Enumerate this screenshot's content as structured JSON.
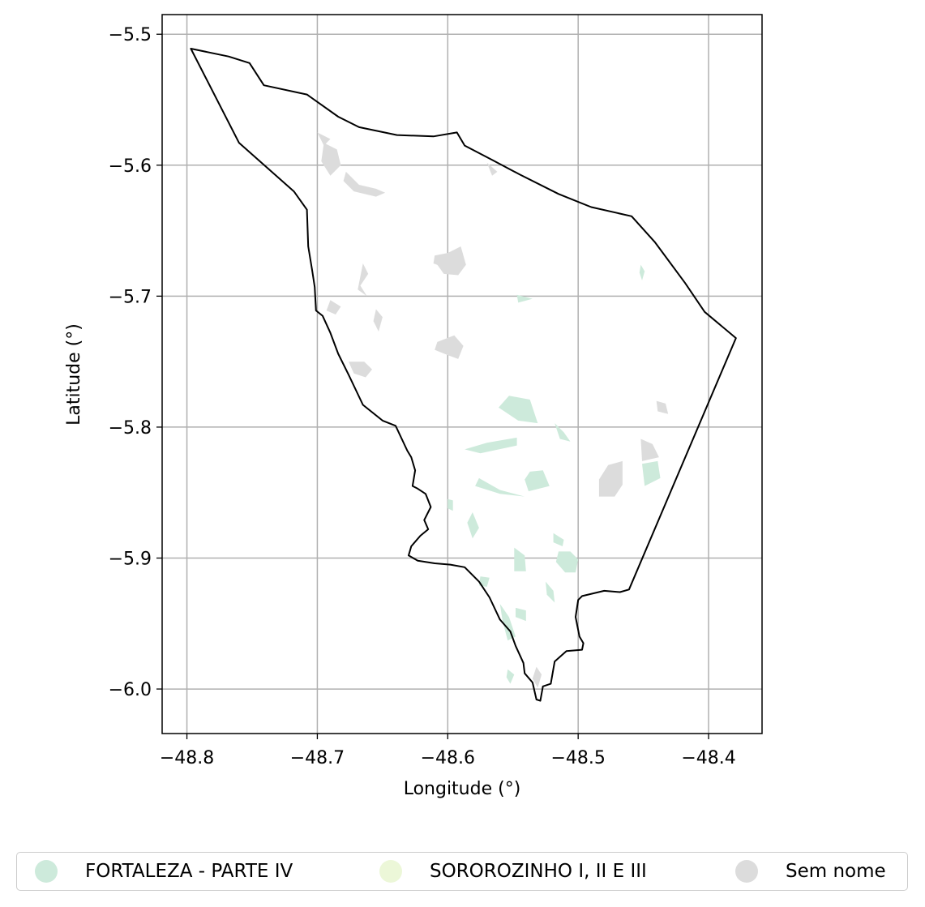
{
  "chart_data": {
    "type": "map",
    "xlabel": "Longitude (°)",
    "ylabel": "Latitude (°)",
    "xlim": [
      -48.819,
      -48.359
    ],
    "ylim": [
      -6.034,
      -5.485
    ],
    "xticks": [
      -48.8,
      -48.7,
      -48.6,
      -48.5,
      -48.4
    ],
    "xtick_labels": [
      "−48.8",
      "−48.7",
      "−48.6",
      "−48.5",
      "−48.4"
    ],
    "yticks": [
      -5.5,
      -5.6,
      -5.7,
      -5.8,
      -5.9,
      -6.0
    ],
    "ytick_labels": [
      "−5.5",
      "−5.6",
      "−5.7",
      "−5.8",
      "−5.9",
      "−6.0"
    ],
    "grid": true,
    "legend_placement": "bottom",
    "colors": {
      "boundary": "#000000",
      "grid": "#b0b0b0",
      "fortaleza": "#cdeadb",
      "sororozinho": "#ecf7d8",
      "sem_nome": "#dcdcdc"
    },
    "legend": [
      {
        "label": "FORTALEZA - PARTE IV",
        "color": "#cdeadb"
      },
      {
        "label": "SOROROZINHO I, II E III",
        "color": "#ecf7d8"
      },
      {
        "label": "Sem nome",
        "color": "#dcdcdc"
      }
    ],
    "boundary": [
      [
        -48.797,
        -5.511
      ],
      [
        -48.768,
        -5.517
      ],
      [
        -48.752,
        -5.522
      ],
      [
        -48.741,
        -5.539
      ],
      [
        -48.708,
        -5.546
      ],
      [
        -48.684,
        -5.563
      ],
      [
        -48.668,
        -5.571
      ],
      [
        -48.639,
        -5.577
      ],
      [
        -48.611,
        -5.578
      ],
      [
        -48.593,
        -5.575
      ],
      [
        -48.587,
        -5.585
      ],
      [
        -48.566,
        -5.596
      ],
      [
        -48.545,
        -5.607
      ],
      [
        -48.515,
        -5.622
      ],
      [
        -48.49,
        -5.632
      ],
      [
        -48.459,
        -5.639
      ],
      [
        -48.441,
        -5.659
      ],
      [
        -48.418,
        -5.69
      ],
      [
        -48.403,
        -5.712
      ],
      [
        -48.379,
        -5.732
      ],
      [
        -48.461,
        -5.924
      ],
      [
        -48.468,
        -5.926
      ],
      [
        -48.48,
        -5.925
      ],
      [
        -48.497,
        -5.929
      ],
      [
        -48.5,
        -5.932
      ],
      [
        -48.502,
        -5.945
      ],
      [
        -48.499,
        -5.96
      ],
      [
        -48.496,
        -5.965
      ],
      [
        -48.497,
        -5.97
      ],
      [
        -48.509,
        -5.971
      ],
      [
        -48.518,
        -5.979
      ],
      [
        -48.521,
        -5.996
      ],
      [
        -48.527,
        -5.998
      ],
      [
        -48.529,
        -6.009
      ],
      [
        -48.532,
        -6.008
      ],
      [
        -48.535,
        -5.995
      ],
      [
        -48.541,
        -5.988
      ],
      [
        -48.542,
        -5.98
      ],
      [
        -48.548,
        -5.967
      ],
      [
        -48.552,
        -5.956
      ],
      [
        -48.56,
        -5.947
      ],
      [
        -48.568,
        -5.93
      ],
      [
        -48.576,
        -5.918
      ],
      [
        -48.587,
        -5.907
      ],
      [
        -48.598,
        -5.905
      ],
      [
        -48.61,
        -5.904
      ],
      [
        -48.623,
        -5.902
      ],
      [
        -48.63,
        -5.898
      ],
      [
        -48.628,
        -5.891
      ],
      [
        -48.621,
        -5.883
      ],
      [
        -48.615,
        -5.878
      ],
      [
        -48.618,
        -5.871
      ],
      [
        -48.613,
        -5.861
      ],
      [
        -48.617,
        -5.851
      ],
      [
        -48.623,
        -5.847
      ],
      [
        -48.627,
        -5.845
      ],
      [
        -48.625,
        -5.833
      ],
      [
        -48.628,
        -5.823
      ],
      [
        -48.631,
        -5.818
      ],
      [
        -48.64,
        -5.799
      ],
      [
        -48.65,
        -5.795
      ],
      [
        -48.665,
        -5.783
      ],
      [
        -48.676,
        -5.76
      ],
      [
        -48.684,
        -5.744
      ],
      [
        -48.69,
        -5.728
      ],
      [
        -48.696,
        -5.715
      ],
      [
        -48.701,
        -5.711
      ],
      [
        -48.702,
        -5.693
      ],
      [
        -48.704,
        -5.68
      ],
      [
        -48.707,
        -5.662
      ],
      [
        -48.708,
        -5.634
      ],
      [
        -48.718,
        -5.62
      ],
      [
        -48.76,
        -5.583
      ],
      [
        -48.797,
        -5.511
      ]
    ],
    "features": [
      {
        "cls": "sem_nome",
        "pts": [
          [
            -48.695,
            -5.583
          ],
          [
            -48.685,
            -5.588
          ],
          [
            -48.682,
            -5.6
          ],
          [
            -48.69,
            -5.608
          ],
          [
            -48.697,
            -5.597
          ]
        ]
      },
      {
        "cls": "sem_nome",
        "pts": [
          [
            -48.7,
            -5.575
          ],
          [
            -48.69,
            -5.58
          ],
          [
            -48.695,
            -5.585
          ]
        ]
      },
      {
        "cls": "sem_nome",
        "pts": [
          [
            -48.678,
            -5.605
          ],
          [
            -48.668,
            -5.615
          ],
          [
            -48.655,
            -5.618
          ],
          [
            -48.648,
            -5.621
          ],
          [
            -48.655,
            -5.624
          ],
          [
            -48.672,
            -5.62
          ],
          [
            -48.68,
            -5.612
          ]
        ]
      },
      {
        "cls": "sem_nome",
        "pts": [
          [
            -48.59,
            -5.662
          ],
          [
            -48.602,
            -5.668
          ],
          [
            -48.608,
            -5.676
          ],
          [
            -48.603,
            -5.683
          ],
          [
            -48.592,
            -5.684
          ],
          [
            -48.586,
            -5.676
          ]
        ]
      },
      {
        "cls": "sem_nome",
        "pts": [
          [
            -48.61,
            -5.669
          ],
          [
            -48.6,
            -5.667
          ],
          [
            -48.597,
            -5.68
          ],
          [
            -48.611,
            -5.675
          ]
        ]
      },
      {
        "cls": "sem_nome",
        "pts": [
          [
            -48.665,
            -5.675
          ],
          [
            -48.661,
            -5.683
          ],
          [
            -48.667,
            -5.692
          ],
          [
            -48.662,
            -5.7
          ],
          [
            -48.669,
            -5.695
          ]
        ]
      },
      {
        "cls": "sem_nome",
        "pts": [
          [
            -48.69,
            -5.703
          ],
          [
            -48.682,
            -5.708
          ],
          [
            -48.686,
            -5.714
          ],
          [
            -48.693,
            -5.711
          ]
        ]
      },
      {
        "cls": "sem_nome",
        "pts": [
          [
            -48.655,
            -5.71
          ],
          [
            -48.65,
            -5.716
          ],
          [
            -48.653,
            -5.727
          ],
          [
            -48.657,
            -5.719
          ]
        ]
      },
      {
        "cls": "sem_nome",
        "pts": [
          [
            -48.676,
            -5.75
          ],
          [
            -48.664,
            -5.75
          ],
          [
            -48.658,
            -5.756
          ],
          [
            -48.663,
            -5.762
          ],
          [
            -48.672,
            -5.759
          ]
        ]
      },
      {
        "cls": "sem_nome",
        "pts": [
          [
            -48.608,
            -5.735
          ],
          [
            -48.595,
            -5.73
          ],
          [
            -48.588,
            -5.738
          ],
          [
            -48.592,
            -5.748
          ],
          [
            -48.6,
            -5.745
          ],
          [
            -48.61,
            -5.741
          ]
        ]
      },
      {
        "cls": "sem_nome",
        "pts": [
          [
            -48.57,
            -5.598
          ],
          [
            -48.562,
            -5.605
          ],
          [
            -48.566,
            -5.608
          ]
        ]
      },
      {
        "cls": "sem_nome",
        "pts": [
          [
            -48.44,
            -5.78
          ],
          [
            -48.433,
            -5.782
          ],
          [
            -48.431,
            -5.79
          ],
          [
            -48.439,
            -5.788
          ]
        ]
      },
      {
        "cls": "sem_nome",
        "pts": [
          [
            -48.477,
            -5.829
          ],
          [
            -48.466,
            -5.826
          ],
          [
            -48.466,
            -5.844
          ],
          [
            -48.472,
            -5.853
          ],
          [
            -48.484,
            -5.853
          ],
          [
            -48.484,
            -5.84
          ]
        ]
      },
      {
        "cls": "sem_nome",
        "pts": [
          [
            -48.452,
            -5.809
          ],
          [
            -48.443,
            -5.813
          ],
          [
            -48.438,
            -5.823
          ],
          [
            -48.451,
            -5.826
          ]
        ]
      },
      {
        "cls": "sem_nome",
        "pts": [
          [
            -48.532,
            -5.983
          ],
          [
            -48.528,
            -5.989
          ],
          [
            -48.531,
            -5.999
          ],
          [
            -48.535,
            -5.992
          ]
        ]
      },
      {
        "cls": "fortaleza",
        "pts": [
          [
            -48.553,
            -5.776
          ],
          [
            -48.537,
            -5.779
          ],
          [
            -48.531,
            -5.797
          ],
          [
            -48.546,
            -5.795
          ],
          [
            -48.561,
            -5.785
          ]
        ]
      },
      {
        "cls": "fortaleza",
        "pts": [
          [
            -48.587,
            -5.817
          ],
          [
            -48.57,
            -5.812
          ],
          [
            -48.547,
            -5.808
          ],
          [
            -48.547,
            -5.814
          ],
          [
            -48.575,
            -5.82
          ]
        ]
      },
      {
        "cls": "fortaleza",
        "pts": [
          [
            -48.518,
            -5.797
          ],
          [
            -48.511,
            -5.804
          ],
          [
            -48.506,
            -5.811
          ],
          [
            -48.514,
            -5.809
          ]
        ]
      },
      {
        "cls": "fortaleza",
        "pts": [
          [
            -48.537,
            -5.834
          ],
          [
            -48.527,
            -5.833
          ],
          [
            -48.522,
            -5.845
          ],
          [
            -48.538,
            -5.849
          ],
          [
            -48.541,
            -5.84
          ]
        ]
      },
      {
        "cls": "fortaleza",
        "pts": [
          [
            -48.451,
            -5.828
          ],
          [
            -48.439,
            -5.826
          ],
          [
            -48.437,
            -5.839
          ],
          [
            -48.449,
            -5.845
          ]
        ]
      },
      {
        "cls": "fortaleza",
        "pts": [
          [
            -48.576,
            -5.839
          ],
          [
            -48.56,
            -5.848
          ],
          [
            -48.541,
            -5.853
          ],
          [
            -48.56,
            -5.851
          ],
          [
            -48.579,
            -5.845
          ]
        ]
      },
      {
        "cls": "fortaleza",
        "pts": [
          [
            -48.6,
            -5.855
          ],
          [
            -48.596,
            -5.856
          ],
          [
            -48.596,
            -5.864
          ],
          [
            -48.6,
            -5.862
          ]
        ]
      },
      {
        "cls": "fortaleza",
        "pts": [
          [
            -48.581,
            -5.865
          ],
          [
            -48.576,
            -5.877
          ],
          [
            -48.581,
            -5.885
          ],
          [
            -48.585,
            -5.873
          ]
        ]
      },
      {
        "cls": "fortaleza",
        "pts": [
          [
            -48.549,
            -5.892
          ],
          [
            -48.541,
            -5.898
          ],
          [
            -48.54,
            -5.91
          ],
          [
            -48.549,
            -5.91
          ]
        ]
      },
      {
        "cls": "fortaleza",
        "pts": [
          [
            -48.515,
            -5.895
          ],
          [
            -48.506,
            -5.895
          ],
          [
            -48.5,
            -5.901
          ],
          [
            -48.502,
            -5.911
          ],
          [
            -48.51,
            -5.911
          ],
          [
            -48.517,
            -5.903
          ]
        ]
      },
      {
        "cls": "fortaleza",
        "pts": [
          [
            -48.519,
            -5.881
          ],
          [
            -48.511,
            -5.886
          ],
          [
            -48.512,
            -5.891
          ],
          [
            -48.519,
            -5.888
          ]
        ]
      },
      {
        "cls": "fortaleza",
        "pts": [
          [
            -48.525,
            -5.918
          ],
          [
            -48.519,
            -5.925
          ],
          [
            -48.518,
            -5.934
          ],
          [
            -48.524,
            -5.928
          ]
        ]
      },
      {
        "cls": "fortaleza",
        "pts": [
          [
            -48.56,
            -5.935
          ],
          [
            -48.553,
            -5.945
          ],
          [
            -48.548,
            -5.96
          ],
          [
            -48.554,
            -5.963
          ],
          [
            -48.558,
            -5.948
          ]
        ]
      },
      {
        "cls": "fortaleza",
        "pts": [
          [
            -48.548,
            -5.938
          ],
          [
            -48.54,
            -5.94
          ],
          [
            -48.54,
            -5.948
          ],
          [
            -48.548,
            -5.945
          ]
        ]
      },
      {
        "cls": "fortaleza",
        "pts": [
          [
            -48.575,
            -5.914
          ],
          [
            -48.568,
            -5.915
          ],
          [
            -48.57,
            -5.922
          ],
          [
            -48.576,
            -5.921
          ]
        ]
      },
      {
        "cls": "fortaleza",
        "pts": [
          [
            -48.554,
            -5.985
          ],
          [
            -48.549,
            -5.989
          ],
          [
            -48.552,
            -5.996
          ],
          [
            -48.555,
            -5.991
          ]
        ]
      },
      {
        "cls": "fortaleza",
        "pts": [
          [
            -48.452,
            -5.676
          ],
          [
            -48.449,
            -5.681
          ],
          [
            -48.451,
            -5.688
          ],
          [
            -48.453,
            -5.682
          ]
        ]
      },
      {
        "cls": "fortaleza",
        "pts": [
          [
            -48.547,
            -5.699
          ],
          [
            -48.535,
            -5.702
          ],
          [
            -48.546,
            -5.705
          ]
        ]
      }
    ]
  }
}
